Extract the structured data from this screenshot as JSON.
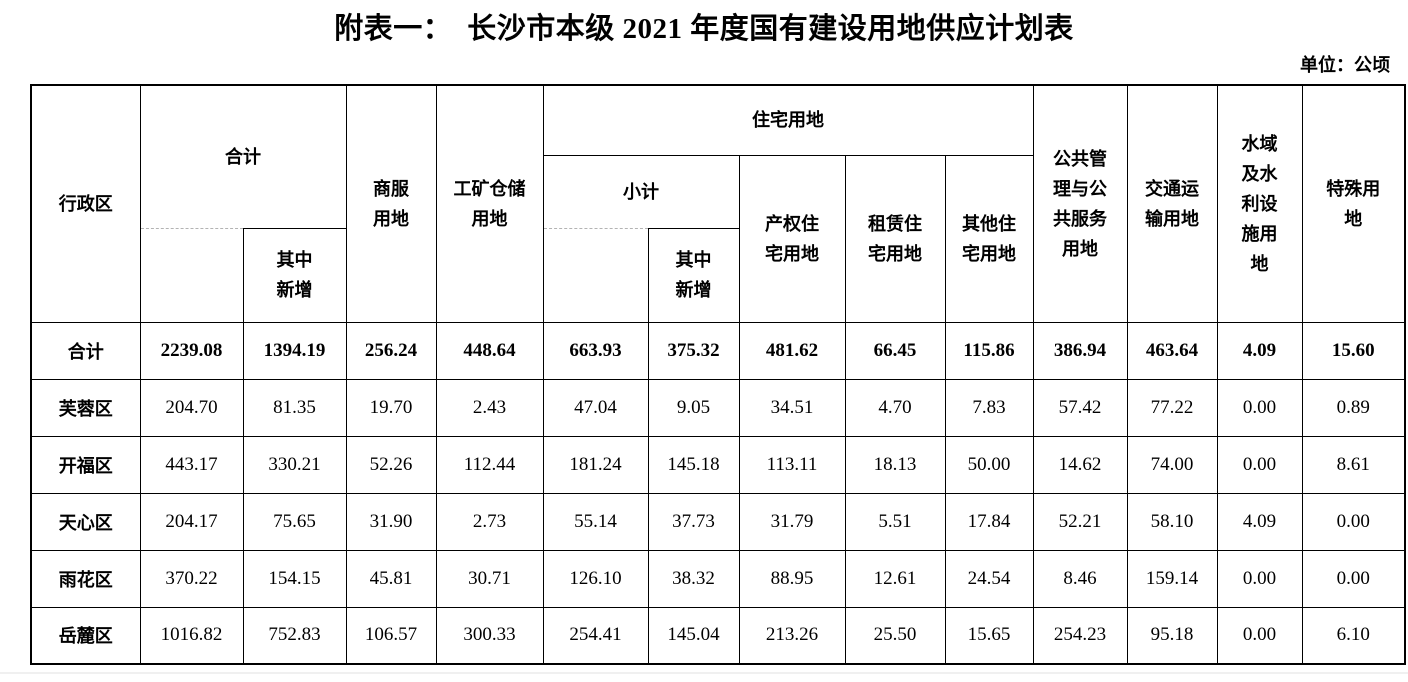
{
  "title": "附表一：　长沙市本级 2021 年度国有建设用地供应计划表",
  "unit_note": "单位：公顷",
  "table": {
    "headers": {
      "district": "行政区",
      "total": "合计",
      "total_new": "其中\n新增",
      "commercial": "商服\n用地",
      "industrial": "工矿仓储\n用地",
      "residential": "住宅用地",
      "residential_subtotal": "小计",
      "residential_subtotal_new": "其中\n新增",
      "property_residential": "产权住\n宅用地",
      "rental_residential": "租赁住\n宅用地",
      "other_residential": "其他住\n宅用地",
      "public_service": "公共管\n理与公\n共服务\n用地",
      "transport": "交通运\n输用地",
      "water": "水域\n及水\n利设\n施用\n地",
      "special": "特殊用\n地"
    },
    "rows": [
      {
        "label": "合计",
        "bold": true,
        "values": [
          "2239.08",
          "1394.19",
          "256.24",
          "448.64",
          "663.93",
          "375.32",
          "481.62",
          "66.45",
          "115.86",
          "386.94",
          "463.64",
          "4.09",
          "15.60"
        ]
      },
      {
        "label": "芙蓉区",
        "bold": false,
        "values": [
          "204.70",
          "81.35",
          "19.70",
          "2.43",
          "47.04",
          "9.05",
          "34.51",
          "4.70",
          "7.83",
          "57.42",
          "77.22",
          "0.00",
          "0.89"
        ]
      },
      {
        "label": "开福区",
        "bold": false,
        "values": [
          "443.17",
          "330.21",
          "52.26",
          "112.44",
          "181.24",
          "145.18",
          "113.11",
          "18.13",
          "50.00",
          "14.62",
          "74.00",
          "0.00",
          "8.61"
        ]
      },
      {
        "label": "天心区",
        "bold": false,
        "values": [
          "204.17",
          "75.65",
          "31.90",
          "2.73",
          "55.14",
          "37.73",
          "31.79",
          "5.51",
          "17.84",
          "52.21",
          "58.10",
          "4.09",
          "0.00"
        ]
      },
      {
        "label": "雨花区",
        "bold": false,
        "values": [
          "370.22",
          "154.15",
          "45.81",
          "30.71",
          "126.10",
          "38.32",
          "88.95",
          "12.61",
          "24.54",
          "8.46",
          "159.14",
          "0.00",
          "0.00"
        ]
      },
      {
        "label": "岳麓区",
        "bold": false,
        "values": [
          "1016.82",
          "752.83",
          "106.57",
          "300.33",
          "254.41",
          "145.04",
          "213.26",
          "25.50",
          "15.65",
          "254.23",
          "95.18",
          "0.00",
          "6.10"
        ]
      }
    ]
  }
}
